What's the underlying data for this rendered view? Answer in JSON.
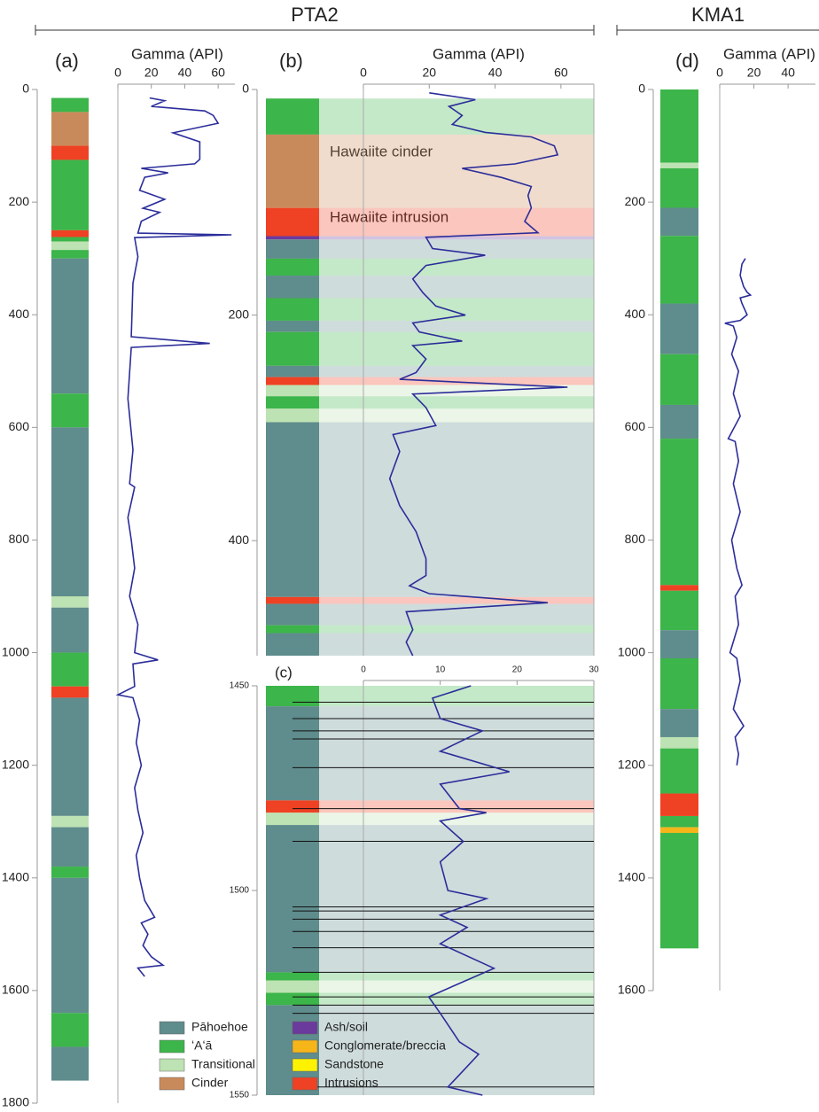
{
  "figure": {
    "titles": [
      "PTA2",
      "KMA1"
    ]
  },
  "legend": [
    {
      "name": "Pāhoehoe",
      "color": "#5f8c8c"
    },
    {
      "name": "ʻAʻā",
      "color": "#3cb54a"
    },
    {
      "name": "Transitional",
      "color": "#bde2b3"
    },
    {
      "name": "Cinder",
      "color": "#c98a5b"
    },
    {
      "name": "Ash/soil",
      "color": "#6a3a9c"
    },
    {
      "name": "Conglomerate/breccia",
      "color": "#f6b519"
    },
    {
      "name": "Sandstone",
      "color": "#fff200"
    },
    {
      "name": "Intrusions",
      "color": "#ef4123"
    }
  ],
  "chart_data": [
    {
      "type": "line",
      "panel_label": "(a)",
      "xlabel": "Gamma (API)",
      "color": "#2b2d9a",
      "xlim": [
        0,
        70
      ],
      "xticks": [
        0,
        20,
        40,
        60
      ],
      "ylim": [
        0,
        1800
      ],
      "yticks": [
        0,
        200,
        400,
        600,
        800,
        1000,
        1200,
        1400,
        1600,
        1800
      ],
      "depths": [
        15,
        20,
        30,
        38,
        46,
        60,
        77,
        93,
        124,
        132,
        140,
        148,
        156,
        179,
        195,
        211,
        218,
        234,
        255,
        258,
        263,
        297,
        344,
        439,
        451,
        458,
        549,
        640,
        700,
        706,
        760,
        800,
        850,
        900,
        950,
        1000,
        1013,
        1020,
        1060,
        1075,
        1080,
        1120,
        1160,
        1200,
        1240,
        1280,
        1320,
        1360,
        1400,
        1440,
        1470,
        1480,
        1500,
        1520,
        1540,
        1555,
        1560,
        1575
      ],
      "values": [
        19,
        28,
        20,
        52,
        57,
        60,
        33,
        49,
        49,
        46,
        14,
        30,
        16,
        13,
        28,
        15,
        25,
        14,
        12,
        68,
        10,
        12,
        9,
        8,
        55,
        8,
        6,
        9,
        7,
        10,
        6,
        8,
        10,
        7,
        12,
        10,
        24,
        9,
        10,
        0,
        9,
        13,
        11,
        14,
        10,
        12,
        15,
        11,
        13,
        16,
        22,
        14,
        18,
        15,
        20,
        27,
        12,
        16
      ],
      "lithology": {
        "top": [
          15,
          40,
          100,
          125,
          250,
          262,
          270,
          285,
          300,
          540,
          600,
          900,
          920,
          1000,
          1060,
          1080,
          1290,
          1310,
          1380,
          1400,
          1640,
          1700
        ],
        "bottom": [
          40,
          100,
          125,
          250,
          262,
          270,
          285,
          300,
          540,
          600,
          900,
          920,
          1000,
          1060,
          1080,
          1290,
          1310,
          1380,
          1400,
          1640,
          1700,
          1760
        ],
        "unit": [
          "ʻAʻā",
          "Cinder",
          "Intrusions",
          "ʻAʻā",
          "Intrusions",
          "ʻAʻā",
          "Transitional",
          "ʻAʻā",
          "Pāhoehoe",
          "ʻAʻā",
          "Pāhoehoe",
          "Transitional",
          "Pāhoehoe",
          "ʻAʻā",
          "Intrusions",
          "Pāhoehoe",
          "Transitional",
          "Pāhoehoe",
          "ʻAʻā",
          "Pāhoehoe",
          "ʻAʻā",
          "Pāhoehoe"
        ]
      }
    },
    {
      "type": "line",
      "panel_label": "(b)",
      "xlabel": "Gamma (API)",
      "color": "#2b2d9a",
      "annotations": [
        "Hawaiite cinder",
        "Hawaiite intrusion"
      ],
      "xlim": [
        0,
        70
      ],
      "xticks": [
        0,
        20,
        40,
        60
      ],
      "ylim": [
        0,
        502
      ],
      "yticks": [
        0,
        200,
        400
      ],
      "depths": [
        3,
        9,
        15,
        23,
        31,
        38,
        42,
        50,
        58,
        66,
        70,
        78,
        86,
        94,
        105,
        117,
        127,
        131,
        141,
        147,
        156,
        168,
        180,
        192,
        200,
        207,
        215,
        223,
        227,
        239,
        251,
        257,
        264,
        270,
        282,
        298,
        306,
        321,
        345,
        369,
        392,
        416,
        431,
        440,
        447,
        455,
        463,
        479,
        490,
        502
      ],
      "values": [
        20,
        34,
        26,
        30,
        27,
        37,
        51,
        58,
        59,
        46,
        30,
        42,
        51,
        50,
        51,
        49,
        53,
        19,
        21,
        37,
        19,
        15,
        18,
        22,
        31,
        15,
        17,
        30,
        15,
        19,
        16,
        11,
        62,
        15,
        19,
        22,
        9,
        11,
        8,
        11,
        16,
        19,
        19,
        14,
        20,
        56,
        13,
        15,
        13,
        15
      ],
      "lithology": {
        "top": [
          8,
          40,
          105,
          130,
          133,
          150,
          165,
          185,
          205,
          215,
          245,
          255,
          262,
          272,
          283,
          295,
          450,
          456,
          475,
          482
        ],
        "bottom": [
          40,
          105,
          130,
          133,
          150,
          165,
          185,
          205,
          215,
          245,
          255,
          262,
          272,
          283,
          295,
          450,
          456,
          475,
          482,
          502
        ],
        "unit": [
          "ʻAʻā",
          "Cinder",
          "Intrusions",
          "Ash/soil",
          "Pāhoehoe",
          "ʻAʻā",
          "Pāhoehoe",
          "ʻAʻā",
          "Pāhoehoe",
          "ʻAʻā",
          "Pāhoehoe",
          "Intrusions",
          "Transitional",
          "ʻAʻā",
          "Transitional",
          "Pāhoehoe",
          "Intrusions",
          "Pāhoehoe",
          "ʻAʻā",
          "Pāhoehoe"
        ]
      }
    },
    {
      "type": "line",
      "panel_label": "(c)",
      "color": "#2b2d9a",
      "xlim": [
        0,
        30
      ],
      "xticks": [
        0,
        10,
        20,
        30
      ],
      "ylim": [
        1450,
        1550
      ],
      "yticks": [
        1450,
        1500,
        1550
      ],
      "depths": [
        1450,
        1453,
        1458,
        1461,
        1466,
        1471,
        1474,
        1480,
        1481,
        1483,
        1488,
        1493,
        1500,
        1502,
        1506,
        1509,
        1513,
        1519,
        1526,
        1530,
        1537,
        1540,
        1544,
        1548,
        1550
      ],
      "values": [
        14,
        9,
        10,
        15.5,
        10,
        19,
        10,
        12.5,
        16,
        10,
        13,
        10,
        11,
        16,
        10,
        13.5,
        10,
        17,
        8.5,
        10,
        12.5,
        15,
        13,
        11,
        15.5
      ],
      "boundaries": [
        1454,
        1458,
        1461,
        1463,
        1470,
        1480,
        1488,
        1504,
        1505,
        1507,
        1510,
        1514,
        1520,
        1526,
        1528,
        1530,
        1548
      ],
      "lithology": {
        "top": [
          1450,
          1455,
          1478,
          1481,
          1484,
          1520,
          1522,
          1525,
          1528
        ],
        "bottom": [
          1455,
          1478,
          1481,
          1484,
          1520,
          1522,
          1525,
          1528,
          1550
        ],
        "unit": [
          "ʻAʻā",
          "Pāhoehoe",
          "Intrusions",
          "Transitional",
          "Pāhoehoe",
          "ʻAʻā",
          "Transitional",
          "ʻAʻā",
          "Pāhoehoe"
        ]
      }
    },
    {
      "type": "line",
      "panel_label": "(d)",
      "xlabel": "Gamma (API)",
      "color": "#2b2d9a",
      "xlim": [
        0,
        56
      ],
      "xticks": [
        0,
        20,
        40
      ],
      "ylim": [
        0,
        1600
      ],
      "yticks": [
        0,
        200,
        400,
        600,
        800,
        1000,
        1200,
        1400,
        1600
      ],
      "depths": [
        300,
        310,
        330,
        350,
        360,
        365,
        370,
        380,
        400,
        410,
        415,
        420,
        440,
        470,
        500,
        540,
        580,
        620,
        625,
        660,
        700,
        750,
        800,
        850,
        880,
        900,
        950,
        1000,
        1010,
        1050,
        1100,
        1130,
        1150,
        1180,
        1200
      ],
      "values": [
        15,
        13,
        12,
        14,
        16,
        18,
        12,
        13,
        16,
        12,
        3,
        8,
        10,
        7,
        11,
        8,
        12,
        5,
        9,
        11,
        8,
        12,
        7,
        10,
        13,
        9,
        11,
        6,
        10,
        12,
        8,
        14,
        9,
        11,
        10
      ],
      "lithology": {
        "top": [
          0,
          130,
          140,
          210,
          260,
          380,
          470,
          560,
          620,
          880,
          890,
          960,
          1010,
          1100,
          1150,
          1170,
          1250,
          1290,
          1310,
          1320
        ],
        "bottom": [
          130,
          140,
          210,
          260,
          380,
          470,
          560,
          620,
          880,
          890,
          960,
          1010,
          1100,
          1150,
          1170,
          1250,
          1290,
          1310,
          1320,
          1525
        ],
        "unit": [
          "ʻAʻā",
          "Transitional",
          "ʻAʻā",
          "Pāhoehoe",
          "ʻAʻā",
          "Pāhoehoe",
          "ʻAʻā",
          "Pāhoehoe",
          "ʻAʻā",
          "Intrusions",
          "ʻAʻā",
          "Pāhoehoe",
          "ʻAʻā",
          "Pāhoehoe",
          "Transitional",
          "ʻAʻā",
          "Intrusions",
          "ʻAʻā",
          "Conglomerate/breccia",
          "ʻAʻā"
        ]
      }
    }
  ]
}
